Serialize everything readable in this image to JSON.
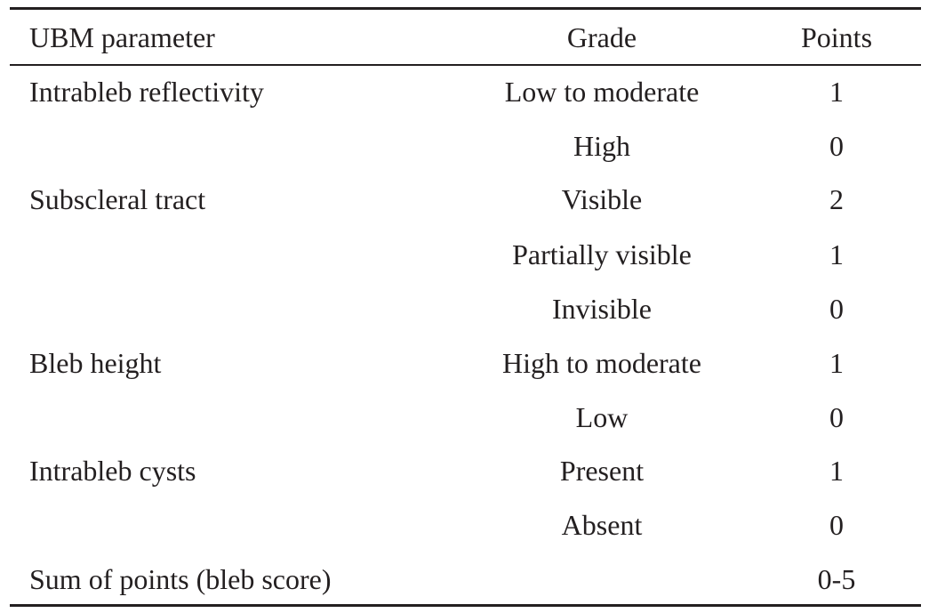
{
  "table": {
    "headers": {
      "parameter": "UBM parameter",
      "grade": "Grade",
      "points": "Points"
    },
    "rows": [
      {
        "parameter": "Intrableb reflectivity",
        "grade": "Low to moderate",
        "points": "1"
      },
      {
        "parameter": "",
        "grade": "High",
        "points": "0"
      },
      {
        "parameter": "Subscleral tract",
        "grade": "Visible",
        "points": "2"
      },
      {
        "parameter": "",
        "grade": "Partially visible",
        "points": "1"
      },
      {
        "parameter": "",
        "grade": "Invisible",
        "points": "0"
      },
      {
        "parameter": "Bleb height",
        "grade": "High to moderate",
        "points": "1"
      },
      {
        "parameter": "",
        "grade": "Low",
        "points": "0"
      },
      {
        "parameter": "Intrableb cysts",
        "grade": "Present",
        "points": "1"
      },
      {
        "parameter": "",
        "grade": "Absent",
        "points": "0"
      },
      {
        "parameter": "Sum of points (bleb score)",
        "grade": "",
        "points": "0-5"
      }
    ]
  }
}
